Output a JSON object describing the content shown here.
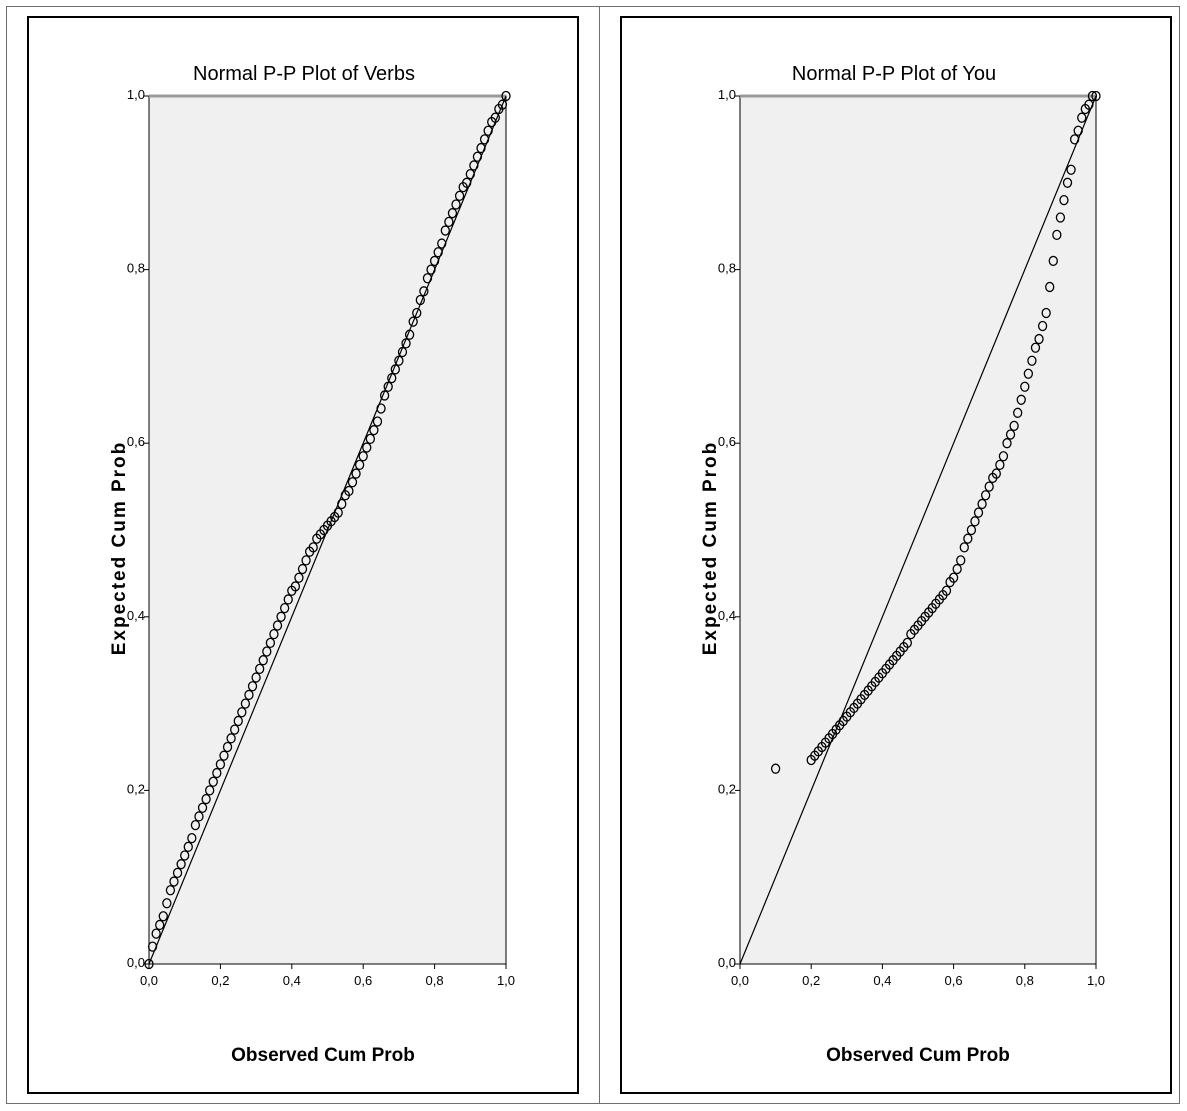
{
  "chart_data": [
    {
      "type": "scatter",
      "title": "Normal P-P Plot of Verbs",
      "xlabel": "Observed Cum Prob",
      "ylabel": "Expected Cum Prob",
      "xlim": [
        0,
        1
      ],
      "ylim": [
        0,
        1
      ],
      "xticks": [
        "0,0",
        "0,2",
        "0,4",
        "0,6",
        "0,8",
        "1,0"
      ],
      "yticks": [
        "0,0",
        "0,2",
        "0,4",
        "0,6",
        "0,8",
        "1,0"
      ],
      "reference_line": [
        [
          0,
          0
        ],
        [
          1,
          1
        ]
      ],
      "points": [
        [
          0.0,
          0.0
        ],
        [
          0.01,
          0.02
        ],
        [
          0.02,
          0.035
        ],
        [
          0.03,
          0.045
        ],
        [
          0.04,
          0.055
        ],
        [
          0.05,
          0.07
        ],
        [
          0.06,
          0.085
        ],
        [
          0.07,
          0.095
        ],
        [
          0.08,
          0.105
        ],
        [
          0.09,
          0.115
        ],
        [
          0.1,
          0.125
        ],
        [
          0.11,
          0.135
        ],
        [
          0.12,
          0.145
        ],
        [
          0.13,
          0.16
        ],
        [
          0.14,
          0.17
        ],
        [
          0.15,
          0.18
        ],
        [
          0.16,
          0.19
        ],
        [
          0.17,
          0.2
        ],
        [
          0.18,
          0.21
        ],
        [
          0.19,
          0.22
        ],
        [
          0.2,
          0.23
        ],
        [
          0.21,
          0.24
        ],
        [
          0.22,
          0.25
        ],
        [
          0.23,
          0.26
        ],
        [
          0.24,
          0.27
        ],
        [
          0.25,
          0.28
        ],
        [
          0.26,
          0.29
        ],
        [
          0.27,
          0.3
        ],
        [
          0.28,
          0.31
        ],
        [
          0.29,
          0.32
        ],
        [
          0.3,
          0.33
        ],
        [
          0.31,
          0.34
        ],
        [
          0.32,
          0.35
        ],
        [
          0.33,
          0.36
        ],
        [
          0.34,
          0.37
        ],
        [
          0.35,
          0.38
        ],
        [
          0.36,
          0.39
        ],
        [
          0.37,
          0.4
        ],
        [
          0.38,
          0.41
        ],
        [
          0.39,
          0.42
        ],
        [
          0.4,
          0.43
        ],
        [
          0.41,
          0.435
        ],
        [
          0.42,
          0.445
        ],
        [
          0.43,
          0.455
        ],
        [
          0.44,
          0.465
        ],
        [
          0.45,
          0.475
        ],
        [
          0.46,
          0.48
        ],
        [
          0.47,
          0.49
        ],
        [
          0.48,
          0.495
        ],
        [
          0.49,
          0.5
        ],
        [
          0.5,
          0.505
        ],
        [
          0.51,
          0.51
        ],
        [
          0.52,
          0.515
        ],
        [
          0.53,
          0.52
        ],
        [
          0.54,
          0.53
        ],
        [
          0.55,
          0.54
        ],
        [
          0.56,
          0.545
        ],
        [
          0.57,
          0.555
        ],
        [
          0.58,
          0.565
        ],
        [
          0.59,
          0.575
        ],
        [
          0.6,
          0.585
        ],
        [
          0.61,
          0.595
        ],
        [
          0.62,
          0.605
        ],
        [
          0.63,
          0.615
        ],
        [
          0.64,
          0.625
        ],
        [
          0.65,
          0.64
        ],
        [
          0.66,
          0.655
        ],
        [
          0.67,
          0.665
        ],
        [
          0.68,
          0.675
        ],
        [
          0.69,
          0.685
        ],
        [
          0.7,
          0.695
        ],
        [
          0.71,
          0.705
        ],
        [
          0.72,
          0.715
        ],
        [
          0.73,
          0.725
        ],
        [
          0.74,
          0.74
        ],
        [
          0.75,
          0.75
        ],
        [
          0.76,
          0.765
        ],
        [
          0.77,
          0.775
        ],
        [
          0.78,
          0.79
        ],
        [
          0.79,
          0.8
        ],
        [
          0.8,
          0.81
        ],
        [
          0.81,
          0.82
        ],
        [
          0.82,
          0.83
        ],
        [
          0.83,
          0.845
        ],
        [
          0.84,
          0.855
        ],
        [
          0.85,
          0.865
        ],
        [
          0.86,
          0.875
        ],
        [
          0.87,
          0.885
        ],
        [
          0.88,
          0.895
        ],
        [
          0.89,
          0.9
        ],
        [
          0.9,
          0.91
        ],
        [
          0.91,
          0.92
        ],
        [
          0.92,
          0.93
        ],
        [
          0.93,
          0.94
        ],
        [
          0.94,
          0.95
        ],
        [
          0.95,
          0.96
        ],
        [
          0.96,
          0.97
        ],
        [
          0.97,
          0.975
        ],
        [
          0.98,
          0.985
        ],
        [
          0.99,
          0.99
        ],
        [
          1.0,
          1.0
        ]
      ]
    },
    {
      "type": "scatter",
      "title": "Normal P-P Plot of You",
      "xlabel": "Observed Cum Prob",
      "ylabel": "Expected Cum Prob",
      "xlim": [
        0,
        1
      ],
      "ylim": [
        0,
        1
      ],
      "xticks": [
        "0,0",
        "0,2",
        "0,4",
        "0,6",
        "0,8",
        "1,0"
      ],
      "yticks": [
        "0,0",
        "0,2",
        "0,4",
        "0,6",
        "0,8",
        "1,0"
      ],
      "reference_line": [
        [
          0,
          0
        ],
        [
          1,
          1
        ]
      ],
      "points": [
        [
          0.1,
          0.225
        ],
        [
          0.2,
          0.235
        ],
        [
          0.21,
          0.24
        ],
        [
          0.22,
          0.245
        ],
        [
          0.23,
          0.25
        ],
        [
          0.24,
          0.255
        ],
        [
          0.25,
          0.26
        ],
        [
          0.26,
          0.265
        ],
        [
          0.27,
          0.27
        ],
        [
          0.28,
          0.275
        ],
        [
          0.29,
          0.28
        ],
        [
          0.3,
          0.285
        ],
        [
          0.31,
          0.29
        ],
        [
          0.32,
          0.295
        ],
        [
          0.33,
          0.3
        ],
        [
          0.34,
          0.305
        ],
        [
          0.35,
          0.31
        ],
        [
          0.36,
          0.315
        ],
        [
          0.37,
          0.32
        ],
        [
          0.38,
          0.325
        ],
        [
          0.39,
          0.33
        ],
        [
          0.4,
          0.335
        ],
        [
          0.41,
          0.34
        ],
        [
          0.42,
          0.345
        ],
        [
          0.43,
          0.35
        ],
        [
          0.44,
          0.355
        ],
        [
          0.45,
          0.36
        ],
        [
          0.46,
          0.365
        ],
        [
          0.47,
          0.37
        ],
        [
          0.48,
          0.38
        ],
        [
          0.49,
          0.385
        ],
        [
          0.5,
          0.39
        ],
        [
          0.51,
          0.395
        ],
        [
          0.52,
          0.4
        ],
        [
          0.53,
          0.405
        ],
        [
          0.54,
          0.41
        ],
        [
          0.55,
          0.415
        ],
        [
          0.56,
          0.42
        ],
        [
          0.57,
          0.425
        ],
        [
          0.58,
          0.43
        ],
        [
          0.59,
          0.44
        ],
        [
          0.6,
          0.445
        ],
        [
          0.61,
          0.455
        ],
        [
          0.62,
          0.465
        ],
        [
          0.63,
          0.48
        ],
        [
          0.64,
          0.49
        ],
        [
          0.65,
          0.5
        ],
        [
          0.66,
          0.51
        ],
        [
          0.67,
          0.52
        ],
        [
          0.68,
          0.53
        ],
        [
          0.69,
          0.54
        ],
        [
          0.7,
          0.55
        ],
        [
          0.71,
          0.56
        ],
        [
          0.72,
          0.565
        ],
        [
          0.73,
          0.575
        ],
        [
          0.74,
          0.585
        ],
        [
          0.75,
          0.6
        ],
        [
          0.76,
          0.61
        ],
        [
          0.77,
          0.62
        ],
        [
          0.78,
          0.635
        ],
        [
          0.79,
          0.65
        ],
        [
          0.8,
          0.665
        ],
        [
          0.81,
          0.68
        ],
        [
          0.82,
          0.695
        ],
        [
          0.83,
          0.71
        ],
        [
          0.84,
          0.72
        ],
        [
          0.85,
          0.735
        ],
        [
          0.86,
          0.75
        ],
        [
          0.87,
          0.78
        ],
        [
          0.88,
          0.81
        ],
        [
          0.89,
          0.84
        ],
        [
          0.9,
          0.86
        ],
        [
          0.91,
          0.88
        ],
        [
          0.92,
          0.9
        ],
        [
          0.93,
          0.915
        ],
        [
          0.94,
          0.95
        ],
        [
          0.95,
          0.96
        ],
        [
          0.96,
          0.975
        ],
        [
          0.97,
          0.985
        ],
        [
          0.98,
          0.99
        ],
        [
          0.99,
          1.0
        ],
        [
          1.0,
          1.0
        ]
      ]
    }
  ]
}
